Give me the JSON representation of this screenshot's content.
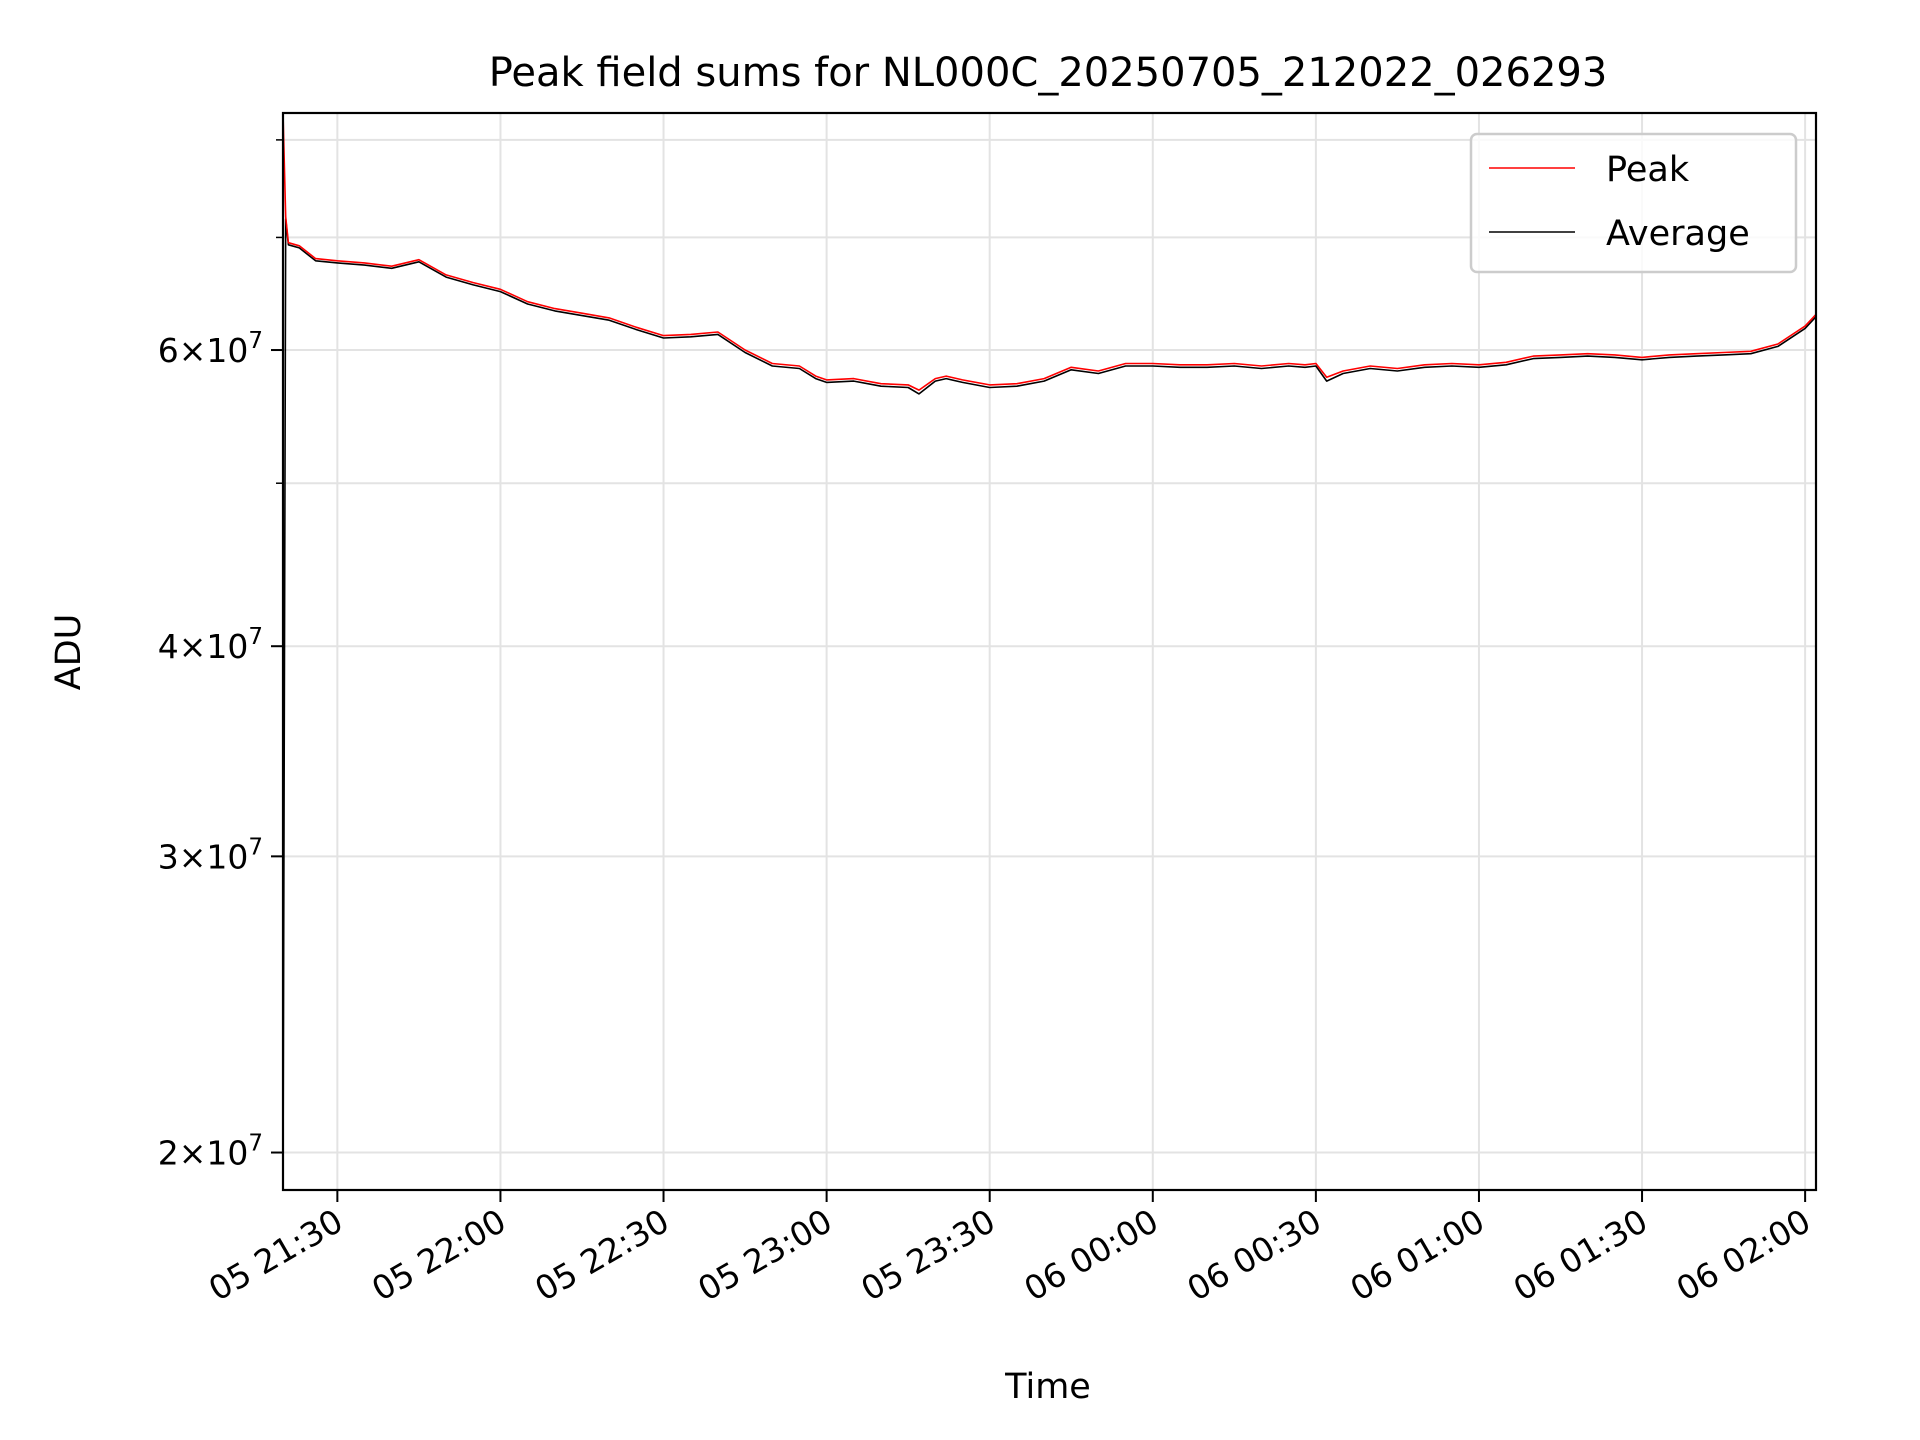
{
  "chart_data": {
    "type": "line",
    "title": "Peak field sums for NL000C_20250705_212022_026293",
    "xlabel": "Time",
    "ylabel": "ADU",
    "x_range": [
      "2025-07-05 21:20",
      "2025-07-06 02:02"
    ],
    "y_scale": "log",
    "ylim": [
      19000000,
      83000000
    ],
    "grid": true,
    "legend_position": "top-right",
    "x_ticks": [
      {
        "t": "2025-07-05 21:30",
        "label": "05 21:30"
      },
      {
        "t": "2025-07-05 22:00",
        "label": "05 22:00"
      },
      {
        "t": "2025-07-05 22:30",
        "label": "05 22:30"
      },
      {
        "t": "2025-07-05 23:00",
        "label": "05 23:00"
      },
      {
        "t": "2025-07-05 23:30",
        "label": "05 23:30"
      },
      {
        "t": "2025-07-06 00:00",
        "label": "06 00:00"
      },
      {
        "t": "2025-07-06 00:30",
        "label": "06 00:30"
      },
      {
        "t": "2025-07-06 01:00",
        "label": "06 01:00"
      },
      {
        "t": "2025-07-06 01:30",
        "label": "06 01:30"
      },
      {
        "t": "2025-07-06 02:00",
        "label": "06 02:00"
      }
    ],
    "y_major_ticks": [
      {
        "value": 20000000,
        "mantissa": "2",
        "base": "10",
        "exp": "7"
      },
      {
        "value": 30000000,
        "mantissa": "3",
        "base": "10",
        "exp": "7"
      },
      {
        "value": 40000000,
        "mantissa": "4",
        "base": "10",
        "exp": "7"
      },
      {
        "value": 60000000,
        "mantissa": "6",
        "base": "10",
        "exp": "7"
      }
    ],
    "y_minor_ticks": [
      50000000,
      70000000,
      80000000
    ],
    "series": [
      {
        "name": "Peak",
        "color": "#ff0000",
        "x": [
          "2025-07-05 21:20",
          "2025-07-05 21:20:30",
          "2025-07-05 21:21",
          "2025-07-05 21:23",
          "2025-07-05 21:26",
          "2025-07-05 21:30",
          "2025-07-05 21:35",
          "2025-07-05 21:40",
          "2025-07-05 21:45",
          "2025-07-05 21:50",
          "2025-07-05 21:55",
          "2025-07-05 22:00",
          "2025-07-05 22:05",
          "2025-07-05 22:10",
          "2025-07-05 22:15",
          "2025-07-05 22:20",
          "2025-07-05 22:25",
          "2025-07-05 22:30",
          "2025-07-05 22:35",
          "2025-07-05 22:40",
          "2025-07-05 22:45",
          "2025-07-05 22:50",
          "2025-07-05 22:55",
          "2025-07-05 22:58",
          "2025-07-05 23:00",
          "2025-07-05 23:05",
          "2025-07-05 23:10",
          "2025-07-05 23:15",
          "2025-07-05 23:17",
          "2025-07-05 23:20",
          "2025-07-05 23:22",
          "2025-07-05 23:25",
          "2025-07-05 23:30",
          "2025-07-05 23:35",
          "2025-07-05 23:40",
          "2025-07-05 23:45",
          "2025-07-05 23:50",
          "2025-07-05 23:55",
          "2025-07-06 00:00",
          "2025-07-06 00:05",
          "2025-07-06 00:10",
          "2025-07-06 00:15",
          "2025-07-06 00:20",
          "2025-07-06 00:25",
          "2025-07-06 00:28",
          "2025-07-06 00:30",
          "2025-07-06 00:32",
          "2025-07-06 00:35",
          "2025-07-06 00:40",
          "2025-07-06 00:45",
          "2025-07-06 00:50",
          "2025-07-06 00:55",
          "2025-07-06 01:00",
          "2025-07-06 01:05",
          "2025-07-06 01:10",
          "2025-07-06 01:15",
          "2025-07-06 01:20",
          "2025-07-06 01:25",
          "2025-07-06 01:30",
          "2025-07-06 01:35",
          "2025-07-06 01:40",
          "2025-07-06 01:45",
          "2025-07-06 01:50",
          "2025-07-06 01:55",
          "2025-07-06 02:00",
          "2025-07-06 02:02"
        ],
        "values": [
          83000000,
          72000000,
          69500000,
          69200000,
          68000000,
          67800000,
          67600000,
          67300000,
          67900000,
          66500000,
          65800000,
          65200000,
          64100000,
          63500000,
          63100000,
          62700000,
          61900000,
          61200000,
          61300000,
          61500000,
          60000000,
          58900000,
          58700000,
          57900000,
          57600000,
          57700000,
          57300000,
          57200000,
          56800000,
          57700000,
          57900000,
          57600000,
          57200000,
          57300000,
          57700000,
          58600000,
          58300000,
          58900000,
          58900000,
          58800000,
          58800000,
          58900000,
          58700000,
          58900000,
          58800000,
          58900000,
          57800000,
          58300000,
          58700000,
          58500000,
          58800000,
          58900000,
          58800000,
          59000000,
          59500000,
          59600000,
          59700000,
          59600000,
          59400000,
          59600000,
          59700000,
          59800000,
          59900000,
          60500000,
          62000000,
          63000000
        ]
      },
      {
        "name": "Average",
        "color": "#000000",
        "x": [
          "2025-07-05 21:20",
          "2025-07-05 21:20:30",
          "2025-07-05 21:21",
          "2025-07-05 21:23",
          "2025-07-05 21:26",
          "2025-07-05 21:30",
          "2025-07-05 21:35",
          "2025-07-05 21:40",
          "2025-07-05 21:45",
          "2025-07-05 21:50",
          "2025-07-05 21:55",
          "2025-07-05 22:00",
          "2025-07-05 22:05",
          "2025-07-05 22:10",
          "2025-07-05 22:15",
          "2025-07-05 22:20",
          "2025-07-05 22:25",
          "2025-07-05 22:30",
          "2025-07-05 22:35",
          "2025-07-05 22:40",
          "2025-07-05 22:45",
          "2025-07-05 22:50",
          "2025-07-05 22:55",
          "2025-07-05 22:58",
          "2025-07-05 23:00",
          "2025-07-05 23:05",
          "2025-07-05 23:10",
          "2025-07-05 23:15",
          "2025-07-05 23:17",
          "2025-07-05 23:20",
          "2025-07-05 23:22",
          "2025-07-05 23:25",
          "2025-07-05 23:30",
          "2025-07-05 23:35",
          "2025-07-05 23:40",
          "2025-07-05 23:45",
          "2025-07-05 23:50",
          "2025-07-05 23:55",
          "2025-07-06 00:00",
          "2025-07-06 00:05",
          "2025-07-06 00:10",
          "2025-07-06 00:15",
          "2025-07-06 00:20",
          "2025-07-06 00:25",
          "2025-07-06 00:28",
          "2025-07-06 00:30",
          "2025-07-06 00:32",
          "2025-07-06 00:35",
          "2025-07-06 00:40",
          "2025-07-06 00:45",
          "2025-07-06 00:50",
          "2025-07-06 00:55",
          "2025-07-06 01:00",
          "2025-07-06 01:05",
          "2025-07-06 01:10",
          "2025-07-06 01:15",
          "2025-07-06 01:20",
          "2025-07-06 01:25",
          "2025-07-06 01:30",
          "2025-07-06 01:35",
          "2025-07-06 01:40",
          "2025-07-06 01:45",
          "2025-07-06 01:50",
          "2025-07-06 01:55",
          "2025-07-06 02:00",
          "2025-07-06 02:02"
        ],
        "values": [
          19000000,
          71800000,
          69300000,
          69000000,
          67800000,
          67600000,
          67400000,
          67100000,
          67700000,
          66300000,
          65600000,
          65000000,
          63900000,
          63300000,
          62900000,
          62500000,
          61700000,
          61000000,
          61100000,
          61300000,
          59800000,
          58700000,
          58500000,
          57700000,
          57400000,
          57500000,
          57100000,
          57000000,
          56500000,
          57500000,
          57700000,
          57400000,
          57000000,
          57100000,
          57500000,
          58400000,
          58100000,
          58700000,
          58700000,
          58600000,
          58600000,
          58700000,
          58500000,
          58700000,
          58600000,
          58700000,
          57500000,
          58100000,
          58500000,
          58300000,
          58600000,
          58700000,
          58600000,
          58800000,
          59300000,
          59400000,
          59500000,
          59400000,
          59200000,
          59400000,
          59500000,
          59600000,
          59700000,
          60300000,
          61800000,
          62800000
        ]
      }
    ]
  }
}
